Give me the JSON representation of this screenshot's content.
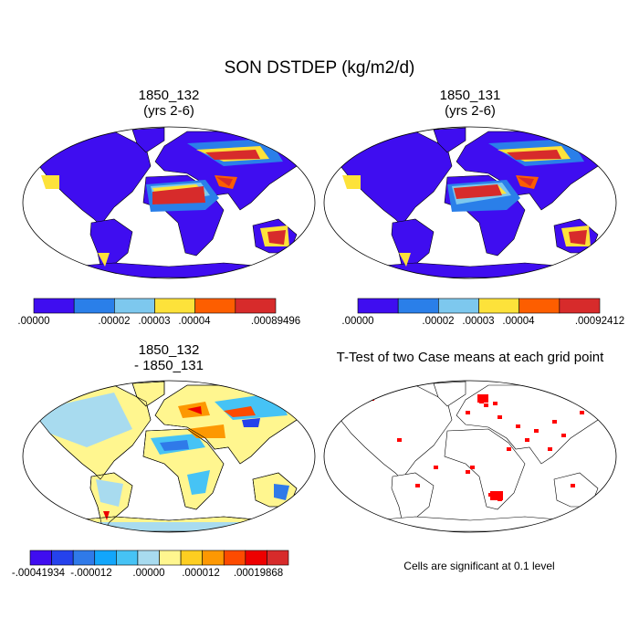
{
  "title": "SON DSTDEP (kg/m2/d)",
  "panels": [
    {
      "title_line1": "1850_132",
      "title_line2": "(yrs 2-6)",
      "kind": "mean"
    },
    {
      "title_line1": "1850_131",
      "title_line2": "(yrs 2-6)",
      "kind": "mean"
    },
    {
      "title_line1": "1850_132",
      "title_line2": "- 1850_131",
      "kind": "diff"
    },
    {
      "title_line1": "T-Test of two Case means at each grid point",
      "title_line2": "",
      "kind": "ttest"
    }
  ],
  "colorbars": {
    "mean_colors": [
      "#3f0df0",
      "#2a7fe9",
      "#7dc8ee",
      "#fde23a",
      "#fd5e00",
      "#d72b2b"
    ],
    "diff_colors": [
      "#3f0df0",
      "#2542ec",
      "#2f7ae9",
      "#12a6fb",
      "#46c3f5",
      "#a8dbef",
      "#fff68f",
      "#fdce21",
      "#fd9802",
      "#fd4b00",
      "#ee0000",
      "#d72b2b"
    ],
    "left_labels": [
      ".00000",
      ".00002",
      ".00003",
      ".00004",
      ".00089496"
    ],
    "right_labels": [
      ".00000",
      ".00002",
      ".00003",
      ".00004",
      ".00092412"
    ],
    "diff_labels": [
      "-.00041934",
      "-.000012",
      ".00000",
      ".000012",
      ".00019868"
    ]
  },
  "ttest_note": "Cells are significant at 0.1 level",
  "chart_data": {
    "type": "heatmap",
    "title": "SON DSTDEP (kg/m2/d)",
    "maps": [
      {
        "name": "1850_132 (yrs 2-6)",
        "levels": [
          0,
          2e-05,
          3e-05,
          4e-05
        ],
        "max": 0.00089496
      },
      {
        "name": "1850_131 (yrs 2-6)",
        "levels": [
          0,
          2e-05,
          3e-05,
          4e-05
        ],
        "max": 0.00092412
      },
      {
        "name": "1850_132 - 1850_131",
        "min": -0.00041934,
        "max": 0.00019868,
        "labelled_levels": [
          -1.2e-05,
          0,
          1.2e-05
        ]
      },
      {
        "name": "T-Test of two Case means at each grid point",
        "significance": 0.1
      }
    ]
  }
}
